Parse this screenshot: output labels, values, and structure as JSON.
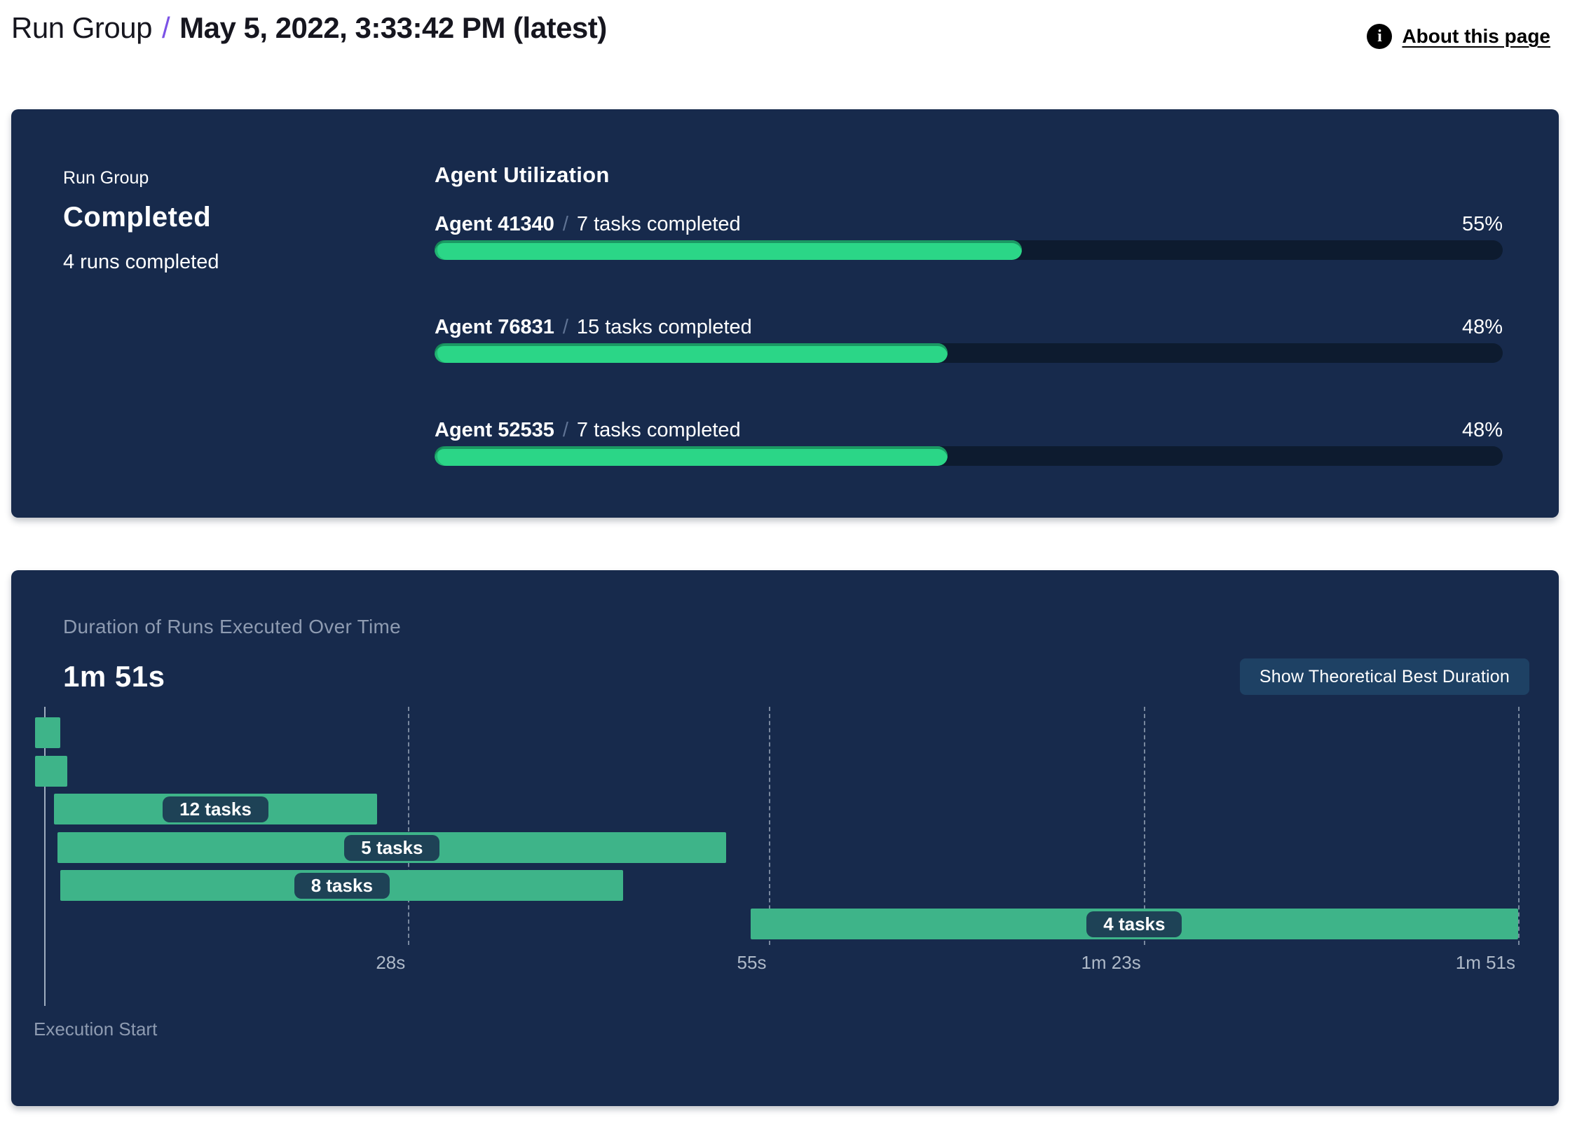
{
  "header": {
    "breadcrumb_root": "Run Group",
    "separator": "/",
    "title": "May 5, 2022, 3:33:42 PM (latest)",
    "info_glyph": "i",
    "about_link": "About this page"
  },
  "status_panel": {
    "label": "Run Group",
    "status": "Completed",
    "runs_summary": "4 runs completed",
    "utilization_heading": "Agent Utilization"
  },
  "duration_panel": {
    "subtitle": "Duration of Runs Executed Over Time",
    "total_duration": "1m 51s",
    "button_label": "Show Theoretical Best Duration",
    "execution_start_label": "Execution Start"
  },
  "colors": {
    "panel_background": "#172a4c",
    "progress_fill_green": "#2bd687",
    "progress_track": "#0d1b2f",
    "gantt_bar_green": "#3eb489",
    "gantt_pill": "#1e4256",
    "button_blue": "#1e4164",
    "accent_purple": "#7b52e6",
    "muted_text": "#8e9bb1"
  },
  "chart_data": [
    {
      "type": "bar",
      "title": "Agent Utilization",
      "categories": [
        "Agent 41340",
        "Agent 76831",
        "Agent 52535"
      ],
      "annotations": [
        "7 tasks completed",
        "15 tasks completed",
        "7 tasks completed"
      ],
      "values": [
        55,
        48,
        48
      ],
      "value_suffix": "%",
      "xlim": [
        0,
        100
      ],
      "separator": "/"
    },
    {
      "type": "gantt",
      "title": "Duration of Runs Executed Over Time",
      "total_duration_label": "1m 51s",
      "xlabel": "Execution Start",
      "xlim_seconds": [
        0,
        111
      ],
      "x_ticks": [
        {
          "seconds": 28,
          "label": "28s"
        },
        {
          "seconds": 55,
          "label": "55s"
        },
        {
          "seconds": 83,
          "label": "1m 23s"
        },
        {
          "seconds": 111,
          "label": "1m 51s"
        }
      ],
      "bars": [
        {
          "start_s": 0.1,
          "end_s": 2.0,
          "label": ""
        },
        {
          "start_s": 0.1,
          "end_s": 2.5,
          "label": ""
        },
        {
          "start_s": 1.5,
          "end_s": 25.7,
          "label": "12 tasks"
        },
        {
          "start_s": 1.8,
          "end_s": 51.8,
          "label": "5 tasks"
        },
        {
          "start_s": 2.0,
          "end_s": 44.1,
          "label": "8 tasks"
        },
        {
          "start_s": 53.6,
          "end_s": 111.0,
          "label": "4 tasks"
        }
      ]
    }
  ]
}
